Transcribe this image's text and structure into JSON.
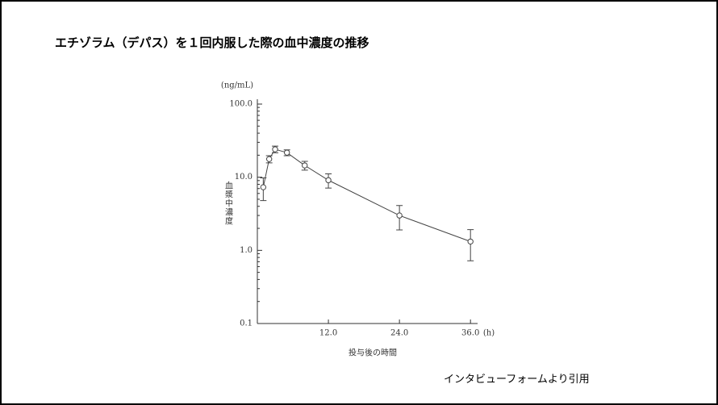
{
  "title": "エチゾラム（デパス）を１回内服した際の血中濃度の推移",
  "source": "インタビューフォームより引用",
  "chart_data": {
    "type": "line",
    "y_unit": "(ng/mL)",
    "ylabel": "血漿中濃度",
    "xlabel": "投与後の時間",
    "x_unit": "(h)",
    "x": [
      1,
      2,
      3,
      5,
      8,
      12,
      24,
      36
    ],
    "series": [
      {
        "values": [
          7.3,
          17.7,
          24.1,
          21.7,
          14.5,
          9.1,
          3.0,
          1.32
        ],
        "errors": [
          2.5,
          2,
          2.5,
          2,
          2,
          2,
          1.1,
          0.6
        ],
        "color": "#444444"
      }
    ],
    "xlim": [
      0,
      37.2
    ],
    "xticks": [
      {
        "value": 12,
        "label": "12.0"
      },
      {
        "value": 24,
        "label": "24.0"
      },
      {
        "value": 36,
        "label": "36.0"
      }
    ],
    "ylim": [
      0.1,
      100
    ],
    "yscale": "log",
    "yticks": [
      {
        "value": 0.1,
        "label": "0.1"
      },
      {
        "value": 1,
        "label": "1.0"
      },
      {
        "value": 10,
        "label": "10.0"
      },
      {
        "value": 100,
        "label": "100.0"
      }
    ],
    "yminorticks": [
      0.2,
      0.3,
      0.4,
      0.5,
      0.6,
      0.7,
      0.8,
      0.9,
      2,
      3,
      4,
      5,
      6,
      7,
      8,
      9,
      20,
      30,
      40,
      50,
      60,
      70,
      80,
      90
    ]
  }
}
